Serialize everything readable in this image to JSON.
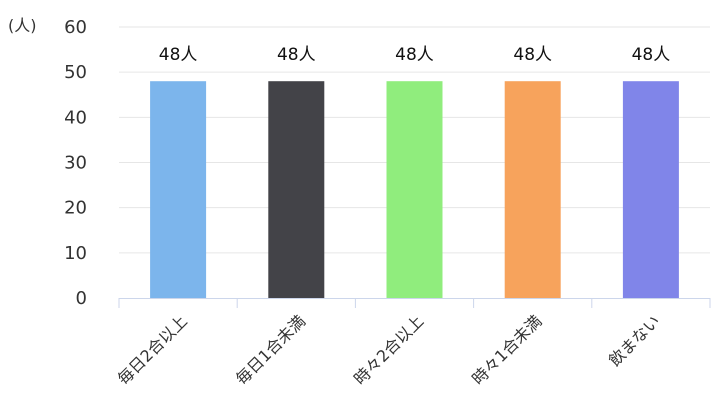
{
  "chart_data": {
    "type": "bar",
    "title": "",
    "xlabel": "",
    "ylabel": "",
    "unit_label": "(人)",
    "value_suffix": "人",
    "categories": [
      "毎日2合以上",
      "毎日1合未満",
      "時々2合以上",
      "時々1合未満",
      "飲まない"
    ],
    "values": [
      48,
      48,
      48,
      48,
      48
    ],
    "colors": [
      "#7cb5ec",
      "#434348",
      "#90ed7d",
      "#f7a35c",
      "#8085e9"
    ],
    "ylim": [
      0,
      60
    ],
    "yticks": [
      0,
      10,
      20,
      30,
      40,
      50,
      60
    ],
    "grid": true,
    "legend": "none"
  }
}
